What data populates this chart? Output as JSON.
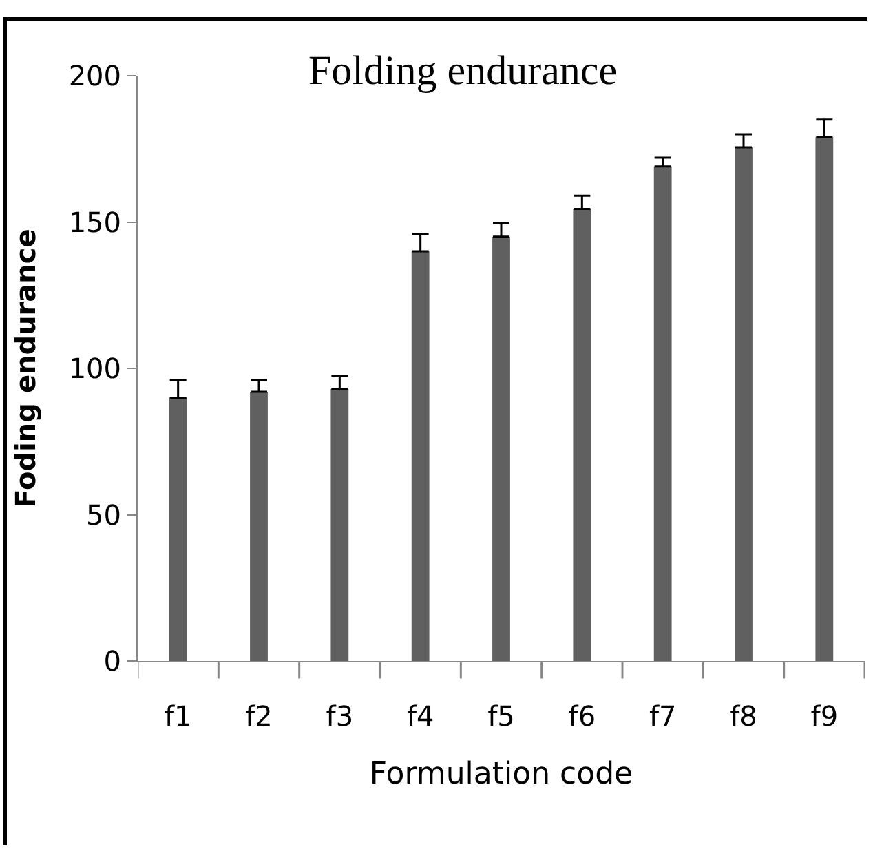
{
  "chart_data": {
    "type": "bar",
    "title": "Folding endurance",
    "xlabel": "Formulation code",
    "ylabel": "Foding endurance",
    "categories": [
      "f1",
      "f2",
      "f3",
      "f4",
      "f5",
      "f6",
      "f7",
      "f8",
      "f9"
    ],
    "values": [
      90,
      92,
      93,
      140,
      145,
      154.5,
      169,
      175.5,
      179
    ],
    "errors": [
      [
        90,
        96
      ],
      [
        92,
        96
      ],
      [
        93,
        97.5
      ],
      [
        140,
        146
      ],
      [
        145,
        149.5
      ],
      [
        154.5,
        159
      ],
      [
        169,
        172
      ],
      [
        175.5,
        180
      ],
      [
        179,
        185
      ]
    ],
    "color": "#606060",
    "ylim": [
      0,
      200
    ],
    "yticks": [
      0,
      50,
      100,
      150,
      200
    ],
    "grid": false,
    "legend": false
  }
}
